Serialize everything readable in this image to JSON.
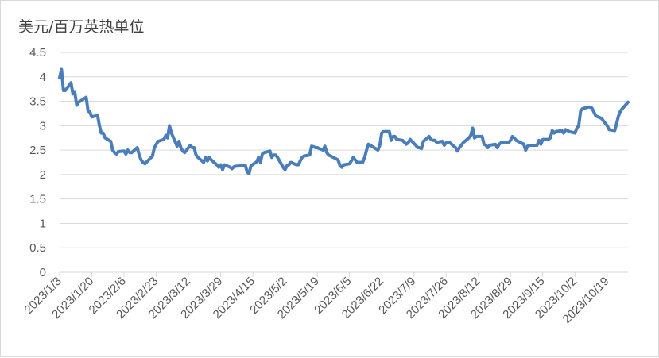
{
  "chart_data": {
    "type": "line",
    "title": "",
    "ylabel": "美元/百万英热单位",
    "xlabel": "",
    "ylim": [
      0,
      4.5
    ],
    "ytick_step": 0.5,
    "yticks": [
      "0",
      "0.5",
      "1",
      "1.5",
      "2",
      "2.5",
      "3",
      "3.5",
      "4",
      "4.5"
    ],
    "xticks": [
      "2023/1/3",
      "2023/1/20",
      "2023/2/6",
      "2023/2/23",
      "2023/3/12",
      "2023/3/29",
      "2023/4/15",
      "2023/5/2",
      "2023/5/19",
      "2023/6/5",
      "2023/6/22",
      "2023/7/9",
      "2023/7/26",
      "2023/8/12",
      "2023/8/29",
      "2023/9/15",
      "2023/10/2",
      "2023/10/19"
    ],
    "x_start": "2023-01-03",
    "x_end": "2023-10-30",
    "grid": true,
    "legend": "none",
    "line_color": "#4a7ebb",
    "series": [
      {
        "x": [
          "2023-01-03",
          "2023-01-04",
          "2023-01-05",
          "2023-01-06",
          "2023-01-09",
          "2023-01-10",
          "2023-01-11",
          "2023-01-12",
          "2023-01-13",
          "2023-01-17",
          "2023-01-18",
          "2023-01-19",
          "2023-01-20",
          "2023-01-23",
          "2023-01-24",
          "2023-01-25",
          "2023-01-26",
          "2023-01-27",
          "2023-01-30",
          "2023-01-31",
          "2023-02-01",
          "2023-02-02",
          "2023-02-03",
          "2023-02-06",
          "2023-02-07",
          "2023-02-08",
          "2023-02-09",
          "2023-02-10",
          "2023-02-13",
          "2023-02-14",
          "2023-02-15",
          "2023-02-16",
          "2023-02-17",
          "2023-02-21",
          "2023-02-22",
          "2023-02-23",
          "2023-02-24",
          "2023-02-27",
          "2023-02-28",
          "2023-03-01",
          "2023-03-02",
          "2023-03-03",
          "2023-03-06",
          "2023-03-07",
          "2023-03-08",
          "2023-03-09",
          "2023-03-10",
          "2023-03-13",
          "2023-03-14",
          "2023-03-15",
          "2023-03-16",
          "2023-03-17",
          "2023-03-20",
          "2023-03-21",
          "2023-03-22",
          "2023-03-23",
          "2023-03-24",
          "2023-03-27",
          "2023-03-28",
          "2023-03-29",
          "2023-03-30",
          "2023-03-31",
          "2023-04-03",
          "2023-04-04",
          "2023-04-05",
          "2023-04-06",
          "2023-04-10",
          "2023-04-11",
          "2023-04-12",
          "2023-04-13",
          "2023-04-14",
          "2023-04-17",
          "2023-04-18",
          "2023-04-19",
          "2023-04-20",
          "2023-04-21",
          "2023-04-24",
          "2023-04-25",
          "2023-04-26",
          "2023-04-27",
          "2023-04-28",
          "2023-05-01",
          "2023-05-02",
          "2023-05-03",
          "2023-05-04",
          "2023-05-05",
          "2023-05-08",
          "2023-05-09",
          "2023-05-10",
          "2023-05-11",
          "2023-05-12",
          "2023-05-15",
          "2023-05-16",
          "2023-05-17",
          "2023-05-18",
          "2023-05-19",
          "2023-05-22",
          "2023-05-23",
          "2023-05-24",
          "2023-05-25",
          "2023-05-26",
          "2023-05-30",
          "2023-05-31",
          "2023-06-01",
          "2023-06-02",
          "2023-06-05",
          "2023-06-06",
          "2023-06-07",
          "2023-06-08",
          "2023-06-09",
          "2023-06-12",
          "2023-06-13",
          "2023-06-14",
          "2023-06-15",
          "2023-06-16",
          "2023-06-20",
          "2023-06-21",
          "2023-06-22",
          "2023-06-23",
          "2023-06-26",
          "2023-06-27",
          "2023-06-28",
          "2023-06-29",
          "2023-06-30",
          "2023-07-03",
          "2023-07-05",
          "2023-07-06",
          "2023-07-07",
          "2023-07-10",
          "2023-07-11",
          "2023-07-12",
          "2023-07-13",
          "2023-07-14",
          "2023-07-17",
          "2023-07-18",
          "2023-07-19",
          "2023-07-20",
          "2023-07-21",
          "2023-07-24",
          "2023-07-25",
          "2023-07-26",
          "2023-07-27",
          "2023-07-28",
          "2023-07-31",
          "2023-08-01",
          "2023-08-02",
          "2023-08-03",
          "2023-08-04",
          "2023-08-07",
          "2023-08-08",
          "2023-08-09",
          "2023-08-10",
          "2023-08-11",
          "2023-08-14",
          "2023-08-15",
          "2023-08-16",
          "2023-08-17",
          "2023-08-18",
          "2023-08-21",
          "2023-08-22",
          "2023-08-23",
          "2023-08-24",
          "2023-08-25",
          "2023-08-28",
          "2023-08-29",
          "2023-08-30",
          "2023-08-31",
          "2023-09-01",
          "2023-09-05",
          "2023-09-06",
          "2023-09-07",
          "2023-09-08",
          "2023-09-11",
          "2023-09-12",
          "2023-09-13",
          "2023-09-14",
          "2023-09-15",
          "2023-09-18",
          "2023-09-19",
          "2023-09-20",
          "2023-09-21",
          "2023-09-22",
          "2023-09-25",
          "2023-09-26",
          "2023-09-27",
          "2023-09-28",
          "2023-09-29",
          "2023-10-02",
          "2023-10-03",
          "2023-10-04",
          "2023-10-05",
          "2023-10-06",
          "2023-10-09",
          "2023-10-10",
          "2023-10-11",
          "2023-10-12",
          "2023-10-13",
          "2023-10-16",
          "2023-10-17",
          "2023-10-18",
          "2023-10-19",
          "2023-10-20",
          "2023-10-23",
          "2023-10-24",
          "2023-10-25",
          "2023-10-26",
          "2023-10-27",
          "2023-10-30"
        ],
        "y": [
          3.98,
          4.15,
          3.72,
          3.72,
          3.88,
          3.65,
          3.68,
          3.42,
          3.48,
          3.58,
          3.3,
          3.28,
          3.18,
          3.21,
          3.0,
          2.85,
          2.85,
          2.75,
          2.68,
          2.5,
          2.45,
          2.42,
          2.47,
          2.48,
          2.42,
          2.5,
          2.45,
          2.45,
          2.55,
          2.4,
          2.3,
          2.25,
          2.22,
          2.38,
          2.55,
          2.62,
          2.68,
          2.72,
          2.8,
          2.75,
          3.0,
          2.85,
          2.58,
          2.68,
          2.55,
          2.48,
          2.45,
          2.6,
          2.55,
          2.55,
          2.4,
          2.35,
          2.25,
          2.35,
          2.28,
          2.35,
          2.3,
          2.2,
          2.15,
          2.2,
          2.1,
          2.2,
          2.15,
          2.12,
          2.16,
          2.17,
          2.18,
          2.19,
          2.05,
          2.02,
          2.18,
          2.26,
          2.35,
          2.25,
          2.42,
          2.45,
          2.48,
          2.35,
          2.4,
          2.4,
          2.35,
          2.15,
          2.1,
          2.18,
          2.2,
          2.25,
          2.2,
          2.2,
          2.28,
          2.35,
          2.38,
          2.4,
          2.58,
          2.57,
          2.55,
          2.55,
          2.5,
          2.58,
          2.45,
          2.4,
          2.38,
          2.3,
          2.18,
          2.15,
          2.2,
          2.22,
          2.28,
          2.35,
          2.3,
          2.25,
          2.25,
          2.35,
          2.5,
          2.62,
          2.6,
          2.5,
          2.6,
          2.85,
          2.88,
          2.88,
          2.7,
          2.78,
          2.78,
          2.72,
          2.7,
          2.62,
          2.65,
          2.72,
          2.6,
          2.55,
          2.55,
          2.53,
          2.68,
          2.78,
          2.72,
          2.7,
          2.7,
          2.66,
          2.68,
          2.6,
          2.65,
          2.65,
          2.65,
          2.55,
          2.48,
          2.55,
          2.6,
          2.65,
          2.75,
          2.8,
          2.95,
          2.75,
          2.78,
          2.78,
          2.62,
          2.6,
          2.55,
          2.6,
          2.62,
          2.55,
          2.62,
          2.65,
          2.65,
          2.66,
          2.7,
          2.78,
          2.75,
          2.7,
          2.62,
          2.5,
          2.58,
          2.6,
          2.6,
          2.6,
          2.7,
          2.62,
          2.72,
          2.72,
          2.75,
          2.9,
          2.85,
          2.88,
          2.9,
          2.85,
          2.92,
          2.9,
          2.88,
          2.85,
          2.95,
          3.0,
          3.3,
          3.35,
          3.38,
          3.38,
          3.36,
          3.28,
          3.2,
          3.15,
          3.1,
          3.05,
          3.0,
          2.92,
          2.9,
          3.05,
          3.2,
          3.3,
          3.35,
          3.48
        ]
      }
    ]
  }
}
